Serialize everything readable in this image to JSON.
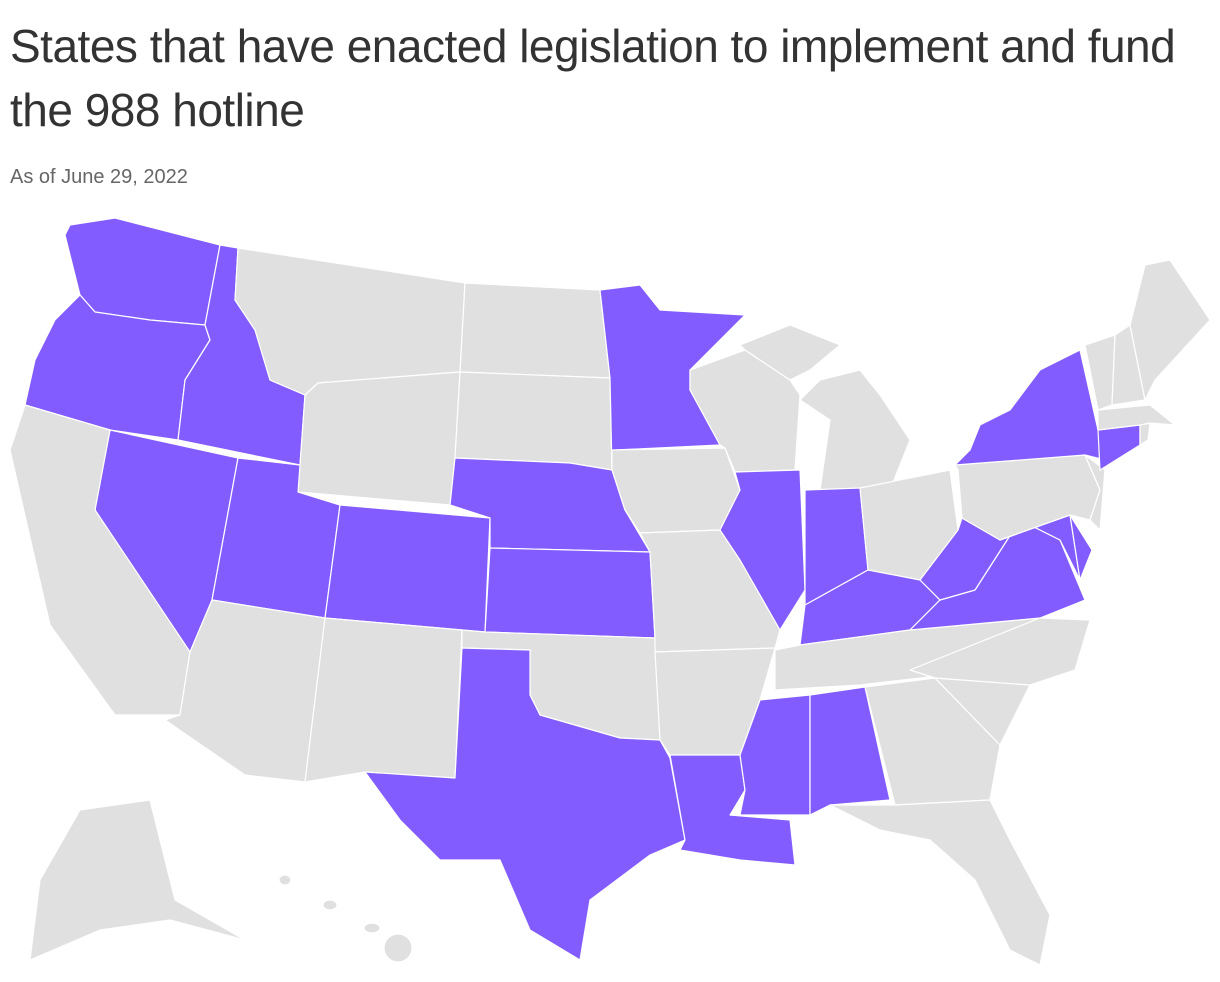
{
  "header": {
    "title": "States that have enacted legislation to implement and fund the 988 hotline",
    "subtitle": "As of June 29, 2022"
  },
  "map": {
    "colors": {
      "enacted": "#835cff",
      "other": "#e0e0e0"
    }
  }
}
